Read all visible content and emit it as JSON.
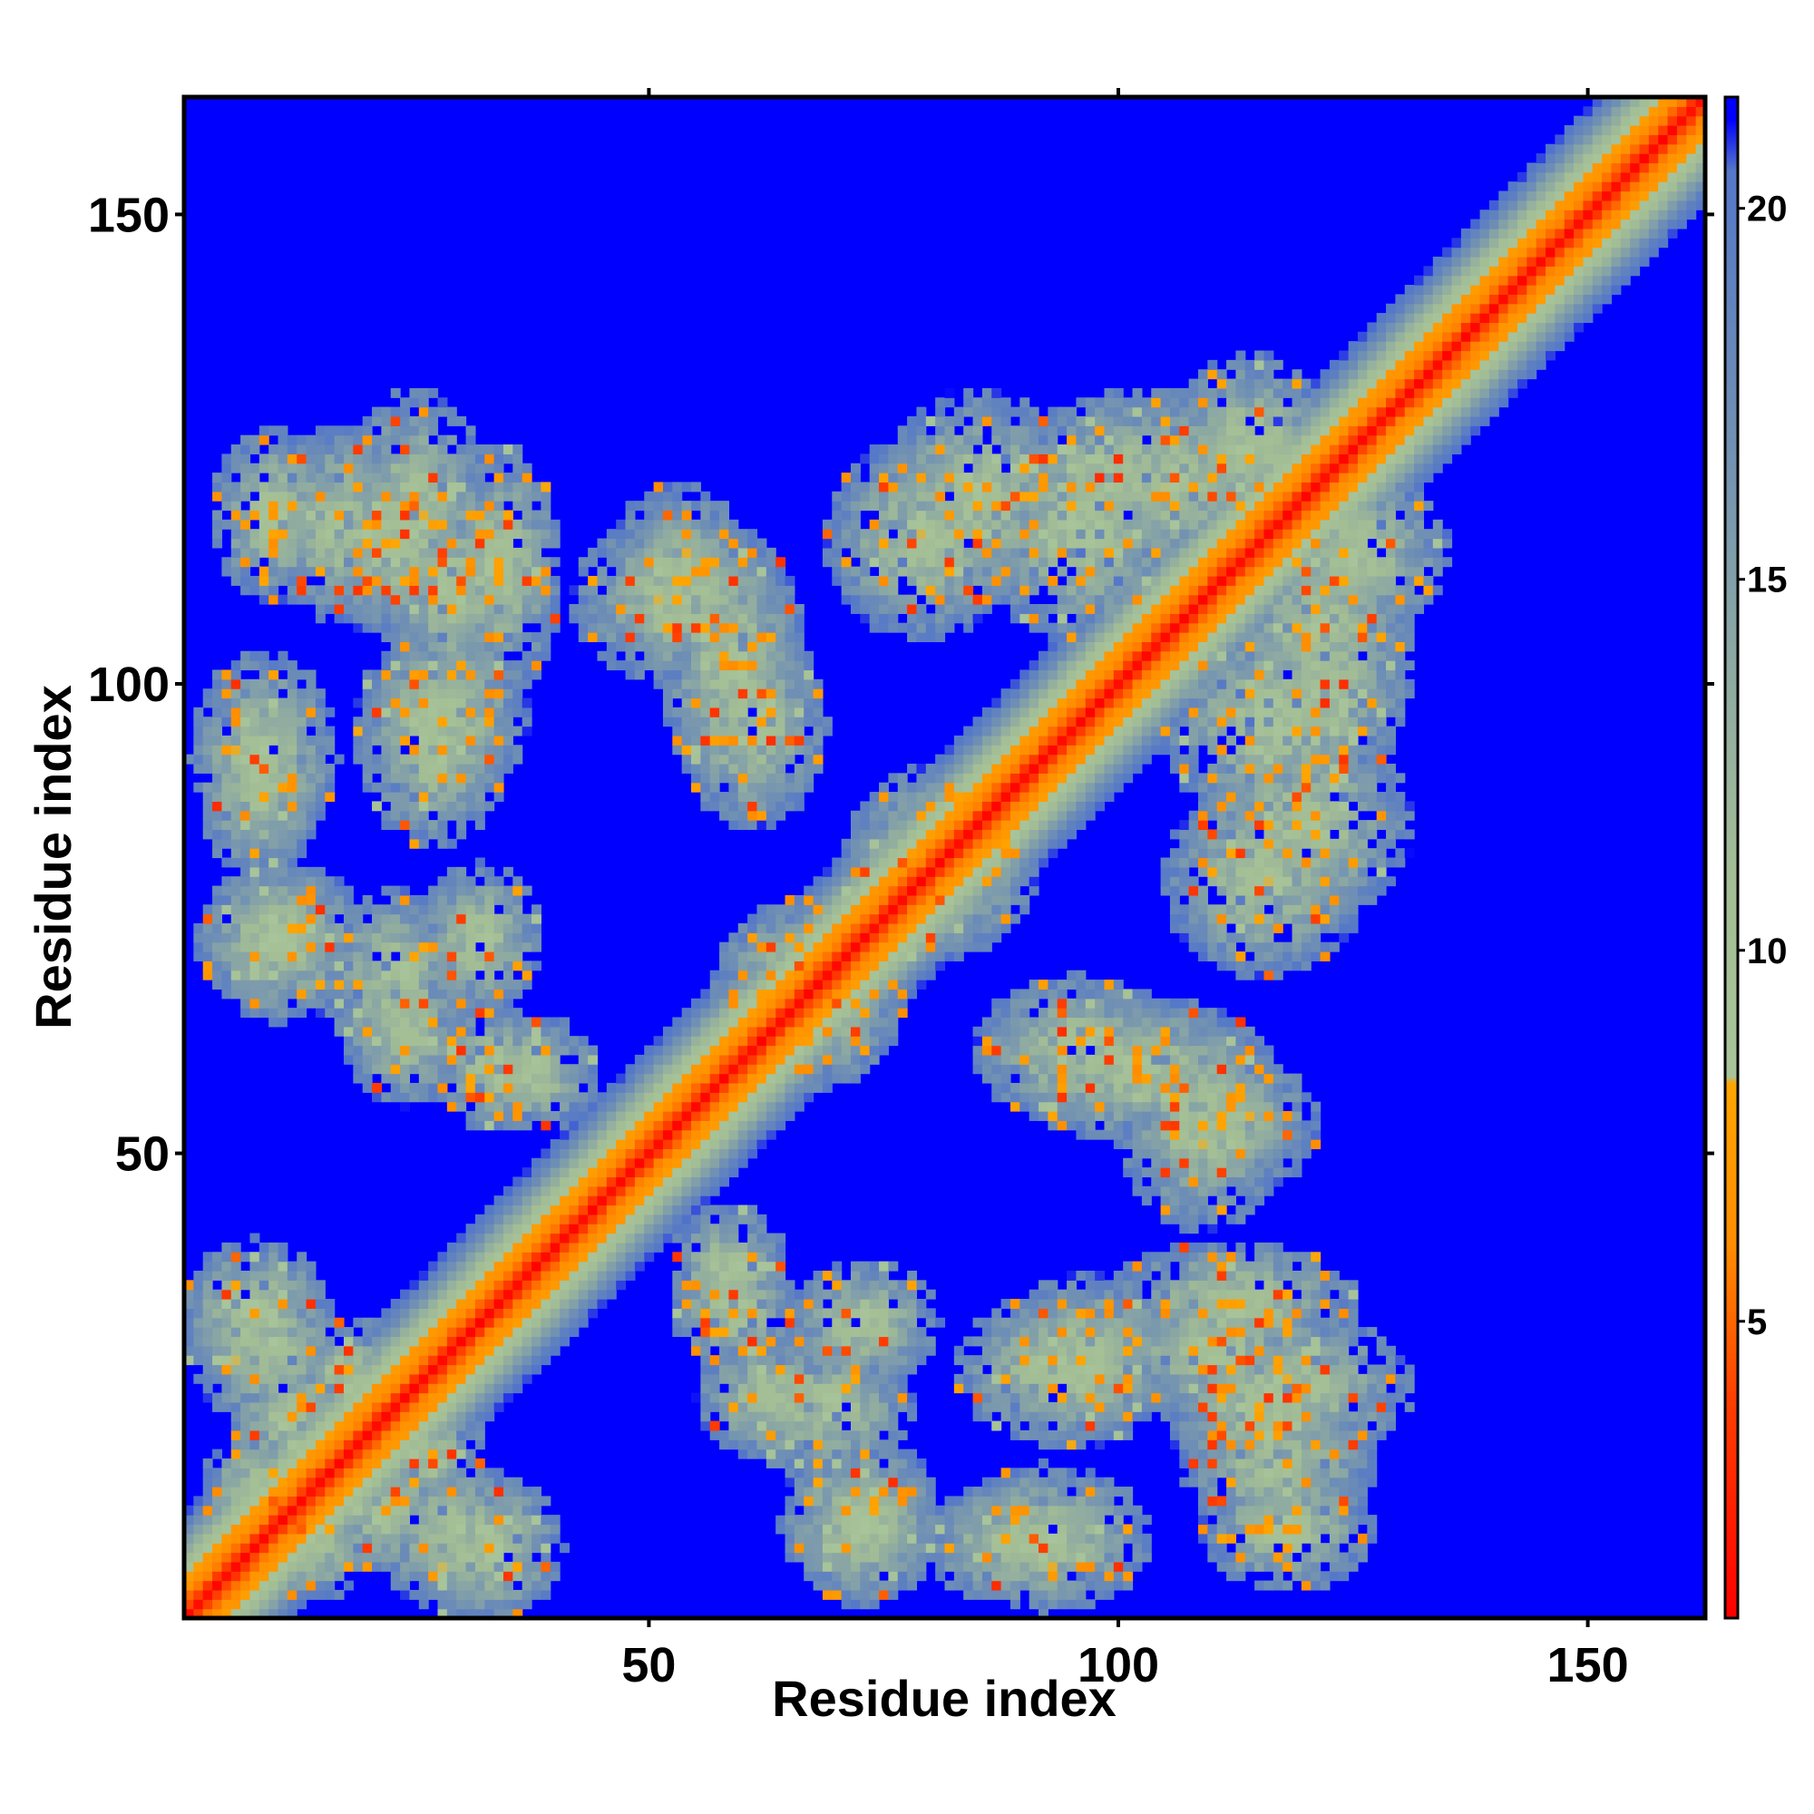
{
  "chart_data": {
    "type": "heatmap",
    "title": "",
    "xlabel": "Residue index",
    "ylabel": "Residue index",
    "n_residues": 162,
    "xlim": [
      1,
      162
    ],
    "ylim": [
      1,
      162
    ],
    "x_ticks": [
      "50",
      "100",
      "150"
    ],
    "y_ticks": [
      "50",
      "100",
      "150"
    ],
    "x_tick_values": [
      50,
      100,
      150
    ],
    "y_tick_values": [
      50,
      100,
      150
    ],
    "colorbar": {
      "range": [
        1,
        21.5
      ],
      "ticks": [
        "5",
        "10",
        "15",
        "20"
      ],
      "tick_values": [
        5,
        10,
        15,
        20
      ],
      "color_stops": [
        {
          "value": 1,
          "color": "#ff0000"
        },
        {
          "value": 4,
          "color": "#ff4000"
        },
        {
          "value": 6,
          "color": "#ff8c00"
        },
        {
          "value": 8.2,
          "color": "#ffa500"
        },
        {
          "value": 8.3,
          "color": "#a8c49a"
        },
        {
          "value": 11,
          "color": "#a3bd95"
        },
        {
          "value": 14,
          "color": "#8ca8a3"
        },
        {
          "value": 17,
          "color": "#6f8fb4"
        },
        {
          "value": 20.5,
          "color": "#5578c8"
        },
        {
          "value": 21.2,
          "color": "#0000ff"
        }
      ]
    },
    "background_color": "#0000ff",
    "diagonal_band": [
      {
        "offset": 0,
        "value": 1.5
      },
      {
        "offset": 1,
        "value": 3.8
      },
      {
        "offset": 2,
        "value": 5.4
      },
      {
        "offset": 3,
        "value": 6.5
      },
      {
        "offset": 4,
        "value": 7.2
      },
      {
        "offset": 5,
        "value": 9
      },
      {
        "offset": 6,
        "value": 11
      },
      {
        "offset": 7,
        "value": 13
      },
      {
        "offset": 8,
        "value": 15
      },
      {
        "offset": 9,
        "value": 17
      },
      {
        "offset": 10,
        "value": 19
      },
      {
        "offset": 11,
        "value": 20.5
      }
    ],
    "contact_patches": [
      {
        "x": [
          3,
          13
        ],
        "y": [
          28,
          38
        ]
      },
      {
        "x": [
          14,
          22
        ],
        "y": [
          23,
          30
        ]
      },
      {
        "x": [
          24,
          34
        ],
        "y": [
          4,
          15
        ]
      },
      {
        "x": [
          18,
          26
        ],
        "y": [
          8,
          16
        ]
      },
      {
        "x": [
          10,
          18
        ],
        "y": [
          5,
          12
        ]
      },
      {
        "x": [
          55,
          63
        ],
        "y": [
          30,
          37
        ]
      },
      {
        "x": [
          58,
          68
        ],
        "y": [
          20,
          28
        ]
      },
      {
        "x": [
          68,
          78
        ],
        "y": [
          5,
          15
        ]
      },
      {
        "x": [
          82,
          95
        ],
        "y": [
          5,
          12
        ]
      },
      {
        "x": [
          86,
          100
        ],
        "y": [
          22,
          32
        ]
      },
      {
        "x": [
          102,
          118
        ],
        "y": [
          25,
          33
        ]
      },
      {
        "x": [
          108,
          122
        ],
        "y": [
          18,
          27
        ]
      },
      {
        "x": [
          112,
          124
        ],
        "y": [
          6,
          14
        ]
      },
      {
        "x": [
          33,
          42
        ],
        "y": [
          55,
          62
        ]
      },
      {
        "x": [
          5,
          17
        ],
        "y": [
          67,
          78
        ]
      },
      {
        "x": [
          18,
          28
        ],
        "y": [
          62,
          75
        ]
      },
      {
        "x": [
          28,
          36
        ],
        "y": [
          68,
          78
        ]
      },
      {
        "x": [
          4,
          14
        ],
        "y": [
          85,
          100
        ]
      },
      {
        "x": [
          22,
          34
        ],
        "y": [
          90,
          103
        ]
      },
      {
        "x": [
          45,
          62
        ],
        "y": [
          103,
          115
        ]
      },
      {
        "x": [
          56,
          66
        ],
        "y": [
          88,
          103
        ]
      },
      {
        "x": [
          12,
          22
        ],
        "y": [
          110,
          124
        ]
      },
      {
        "x": [
          20,
          30
        ],
        "y": [
          108,
          128
        ]
      },
      {
        "x": [
          30,
          38
        ],
        "y": [
          102,
          122
        ]
      },
      {
        "x": [
          62,
          74
        ],
        "y": [
          60,
          72
        ]
      },
      {
        "x": [
          74,
          88
        ],
        "y": [
          74,
          86
        ]
      },
      {
        "x": [
          72,
          86
        ],
        "y": [
          108,
          123
        ]
      },
      {
        "x": [
          88,
          104
        ],
        "y": [
          108,
          124
        ]
      },
      {
        "x": [
          100,
          112
        ],
        "y": [
          115,
          128
        ]
      },
      {
        "x": [
          92,
          112
        ],
        "y": [
          54,
          64
        ]
      },
      {
        "x": [
          104,
          118
        ],
        "y": [
          48,
          58
        ]
      },
      {
        "x": [
          112,
          128
        ],
        "y": [
          78,
          92
        ]
      },
      {
        "x": [
          116,
          128
        ],
        "y": [
          92,
          108
        ]
      },
      {
        "x": [
          118,
          132
        ],
        "y": [
          108,
          120
        ]
      }
    ]
  }
}
